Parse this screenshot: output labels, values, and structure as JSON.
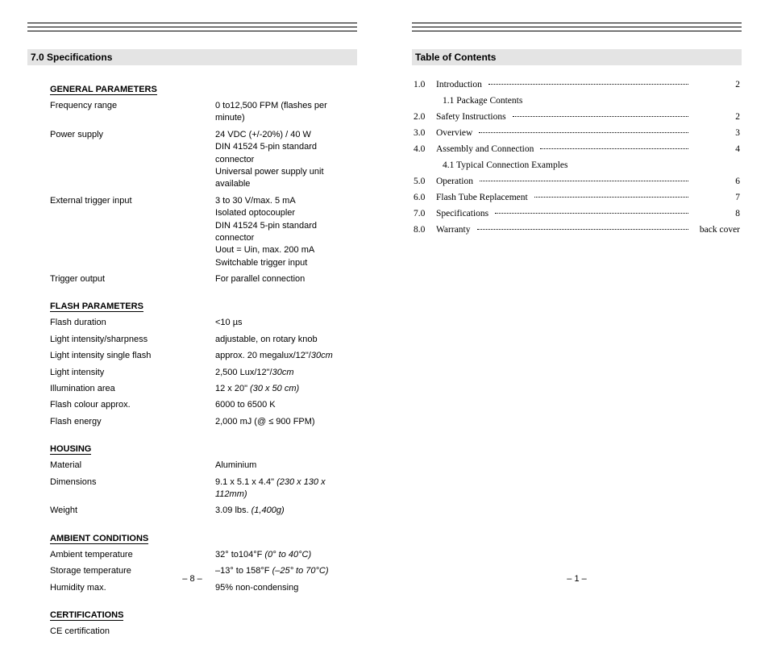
{
  "colors": {
    "heading_bg": "#e4e4e4",
    "page_bg": "#ffffff",
    "text": "#000000"
  },
  "left": {
    "page_number": "– 8 –",
    "heading": "7.0  Specifications",
    "groups": [
      {
        "title": "GENERAL PARAMETERS",
        "rows": [
          {
            "label": "Frequency range",
            "value": [
              "0 to12,500 FPM (flashes per minute)"
            ]
          },
          {
            "label": "Power supply",
            "value": [
              "24 VDC (+/-20%) / 40 W",
              "DIN 41524 5-pin standard connector",
              "Universal power supply unit available"
            ]
          },
          {
            "label": "External trigger input",
            "value": [
              "3 to 30 V/max. 5 mA",
              "Isolated optocoupler",
              "DIN 41524 5-pin standard connector",
              "Uout = Uin, max. 200 mA",
              "Switchable trigger input"
            ]
          },
          {
            "label": "Trigger output",
            "value": [
              "For parallel connection"
            ]
          }
        ]
      },
      {
        "title": "FLASH PARAMETERS",
        "rows": [
          {
            "label": "Flash duration",
            "value": [
              "<10 µs"
            ]
          },
          {
            "label": "Light intensity/sharpness",
            "value": [
              "adjustable, on rotary knob"
            ]
          },
          {
            "label": "Light intensity single flash",
            "value_html": "approx. 20 megalux/12\"/<span class=\"italic\">30cm</span>"
          },
          {
            "label": "Light intensity",
            "value_html": "2,500 Lux/12\"/<span class=\"italic\">30cm</span>"
          },
          {
            "label": "Illumination area",
            "value_html": "12 x 20\" <span class=\"italic\">(30 x 50 cm)</span>"
          },
          {
            "label": "Flash colour approx.",
            "value": [
              "6000 to 6500 K"
            ]
          },
          {
            "label": "Flash energy",
            "value": [
              "2,000 mJ (@ ≤ 900 FPM)"
            ]
          }
        ]
      },
      {
        "title": "HOUSING",
        "rows": [
          {
            "label": "Material",
            "value": [
              "Aluminium"
            ]
          },
          {
            "label": "Dimensions",
            "value_html": "9.1 x 5.1 x 4.4\" <span class=\"italic\">(230 x 130 x 112mm)</span>"
          },
          {
            "label": "Weight",
            "value_html": "3.09 lbs. <span class=\"italic\">(1,400g)</span>"
          }
        ]
      },
      {
        "title": "AMBIENT CONDITIONS",
        "rows": [
          {
            "label": "Ambient temperature",
            "value_html": " 32° to104°F <span class=\"italic\">(0° to 40°C)</span>"
          },
          {
            "label": "Storage temperature",
            "value_html": "–13° to 158°F <span class=\"italic\">(–25° to 70°C)</span>"
          },
          {
            "label": "Humidity max.",
            "value": [
              "95% non-condensing"
            ]
          }
        ]
      },
      {
        "title": "CERTIFICATIONS",
        "rows": [
          {
            "label": "CE certification",
            "value": [
              ""
            ]
          }
        ]
      }
    ]
  },
  "right": {
    "page_number": "– 1 –",
    "heading": "Table of Contents",
    "toc": [
      {
        "num": "1.0",
        "title": "Introduction",
        "page": "2",
        "dots": true
      },
      {
        "sub": true,
        "num": "1.1",
        "title": "Package Contents"
      },
      {
        "num": "2.0",
        "title": "Safety Instructions",
        "page": "2",
        "dots": true
      },
      {
        "num": "3.0",
        "title": "Overview",
        "page": "3",
        "dots": true
      },
      {
        "num": "4.0",
        "title": "Assembly and Connection",
        "page": "4",
        "dots": true
      },
      {
        "sub": true,
        "num": "4.1",
        "title": "Typical Connection Examples"
      },
      {
        "num": "5.0",
        "title": "Operation",
        "page": "6",
        "dots": true
      },
      {
        "num": "6.0",
        "title": "Flash Tube Replacement",
        "page": "7",
        "dots": true
      },
      {
        "num": "7.0",
        "title": "Specifications",
        "page": "8",
        "dots": true
      },
      {
        "num": "8.0",
        "title": "Warranty",
        "page": "back cover",
        "dots": true
      }
    ]
  }
}
